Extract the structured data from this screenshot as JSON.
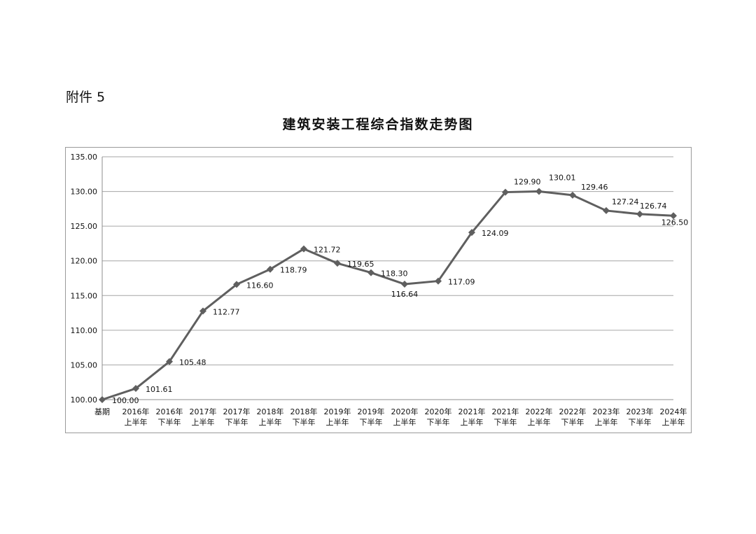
{
  "attachment_label": "附件 5",
  "chart_data": {
    "type": "line",
    "title": "建筑安装工程综合指数走势图",
    "xlabel": "",
    "ylabel": "",
    "ylim": [
      100,
      135
    ],
    "yticks": [
      "100.00",
      "105.00",
      "110.00",
      "115.00",
      "120.00",
      "125.00",
      "130.00",
      "135.00"
    ],
    "grid": true,
    "legend": "none",
    "line_color": "#5f5f5f",
    "categories": [
      [
        "基期"
      ],
      [
        "2016年",
        "上半年"
      ],
      [
        "2016年",
        "下半年"
      ],
      [
        "2017年",
        "上半年"
      ],
      [
        "2017年",
        "下半年"
      ],
      [
        "2018年",
        "上半年"
      ],
      [
        "2018年",
        "下半年"
      ],
      [
        "2019年",
        "上半年"
      ],
      [
        "2019年",
        "下半年"
      ],
      [
        "2020年",
        "上半年"
      ],
      [
        "2020年",
        "下半年"
      ],
      [
        "2021年",
        "上半年"
      ],
      [
        "2021年",
        "下半年"
      ],
      [
        "2022年",
        "上半年"
      ],
      [
        "2022年",
        "下半年"
      ],
      [
        "2023年",
        "上半年"
      ],
      [
        "2023年",
        "下半年"
      ],
      [
        "2024年",
        "上半年"
      ]
    ],
    "values": [
      100.0,
      101.61,
      105.48,
      112.77,
      116.6,
      118.79,
      121.72,
      119.65,
      118.3,
      116.64,
      117.09,
      124.09,
      129.9,
      130.01,
      129.46,
      127.24,
      126.74,
      126.5
    ],
    "data_labels": [
      "100.00",
      "101.61",
      "105.48",
      "112.77",
      "116.60",
      "118.79",
      "121.72",
      "119.65",
      "118.30",
      "116.64",
      "117.09",
      "124.09",
      "129.90",
      "130.01",
      "129.46",
      "127.24",
      "126.74",
      "126.50"
    ]
  }
}
